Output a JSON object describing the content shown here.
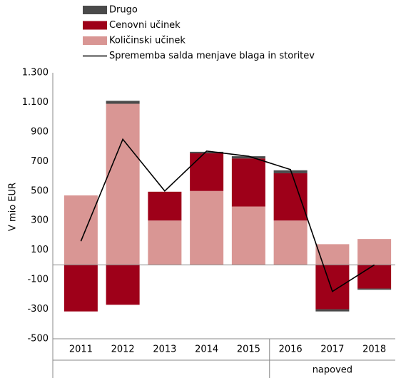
{
  "chart_data": {
    "type": "bar",
    "stacked": true,
    "y_label": "V mio EUR",
    "annotation": "napoved",
    "categories": [
      "2011",
      "2012",
      "2013",
      "2014",
      "2015",
      "2016",
      "2017",
      "2018"
    ],
    "series": [
      {
        "name": "Drugo",
        "color": "#4a4a4a",
        "values": [
          0,
          20,
          0,
          10,
          15,
          20,
          -15,
          -8
        ]
      },
      {
        "name": "Cenovni učinek",
        "color": "#9e0019",
        "values": [
          -315,
          -270,
          195,
          255,
          325,
          320,
          -300,
          -160
        ]
      },
      {
        "name": "Količinski učinek",
        "color": "#d99694",
        "values": [
          470,
          1090,
          300,
          500,
          395,
          300,
          140,
          175
        ]
      },
      {
        "name": "Sprememba salda menjave blaga in storitev",
        "type": "line",
        "color": "#000000",
        "values": [
          160,
          850,
          500,
          770,
          735,
          645,
          -180,
          0
        ]
      }
    ],
    "ylim": [
      -500,
      1300
    ],
    "yticks": [
      -500,
      -300,
      -100,
      100,
      300,
      500,
      700,
      900,
      {
        "value": 1100,
        "label": "1.100"
      },
      {
        "value": 1300,
        "label": "1.300"
      }
    ],
    "grid": false
  }
}
